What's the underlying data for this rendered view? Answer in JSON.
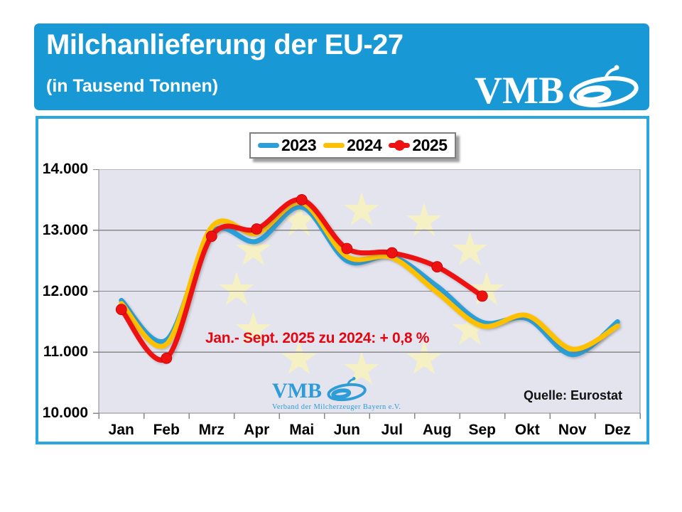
{
  "header": {
    "title": "Milchanlieferung der EU-27",
    "subtitle": "(in Tausend Tonnen)",
    "brand": "VMB",
    "bg_color": "#1899D6"
  },
  "chart_data": {
    "type": "line",
    "title": "Milchanlieferung der EU-27",
    "subtitle": "(in Tausend Tonnen)",
    "unit": "Tausend Tonnen",
    "categories": [
      "Jan",
      "Feb",
      "Mrz",
      "Apr",
      "Mai",
      "Jun",
      "Jul",
      "Aug",
      "Sep",
      "Okt",
      "Nov",
      "Dez"
    ],
    "series": [
      {
        "name": "2023",
        "color": "#2A9FD8",
        "markers": false,
        "values": [
          11850,
          11200,
          12950,
          12820,
          13380,
          12500,
          12570,
          12080,
          11490,
          11550,
          10960,
          11500
        ]
      },
      {
        "name": "2024",
        "color": "#FFC000",
        "markers": false,
        "values": [
          11800,
          11130,
          13050,
          12950,
          13450,
          12570,
          12550,
          11980,
          11430,
          11600,
          11050,
          11430
        ]
      },
      {
        "name": "2025",
        "color": "#EE1111",
        "markers": true,
        "values": [
          11700,
          10900,
          12900,
          13020,
          13500,
          12700,
          12630,
          12400,
          11920
        ]
      }
    ],
    "ylim": [
      10000,
      14000
    ],
    "ystep": 1000,
    "ytick_labels": [
      "10.000",
      "11.000",
      "12.000",
      "13.000",
      "14.000"
    ],
    "grid": true,
    "grid_color": "#888888",
    "plot_bg": "#E4E4EF",
    "eu_stars_color": "#F5F1C4",
    "legend_position": "top-center",
    "annotation": "Jan.- Sept. 2025 zu 2024: + 0,8 %",
    "source": "Quelle: Eurostat"
  },
  "watermark": {
    "brand": "VMB",
    "caption": "Verband der Milcherzeuger Bayern e.V."
  }
}
